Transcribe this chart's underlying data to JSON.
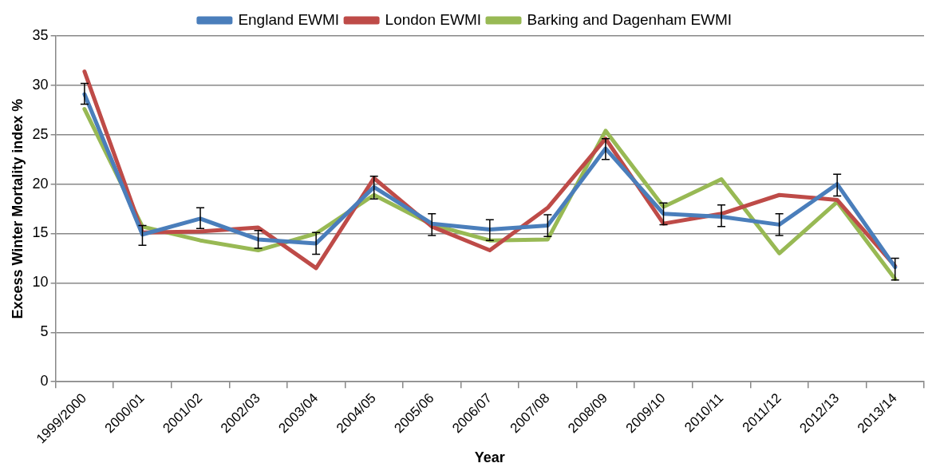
{
  "chart_data": {
    "type": "line",
    "xlabel": "Year",
    "ylabel": "Excess Winter Mortality index %",
    "categories": [
      "1999/2000",
      "2000/01",
      "2001/02",
      "2002/03",
      "2003/04",
      "2004/05",
      "2005/06",
      "2006/07",
      "2007/08",
      "2008/09",
      "2009/10",
      "2010/11",
      "2011/12",
      "2012/13",
      "2013/14"
    ],
    "series": [
      {
        "name": "England EWMI",
        "color": "#4a7ebb",
        "values": [
          29.1,
          14.9,
          16.5,
          14.4,
          14.0,
          19.7,
          16.0,
          15.4,
          15.8,
          23.6,
          17.0,
          16.7,
          15.9,
          20.0,
          11.6
        ],
        "errors": [
          [
            28.1,
            30.2
          ],
          [
            13.8,
            15.8
          ],
          [
            15.5,
            17.6
          ],
          [
            13.5,
            15.3
          ],
          [
            12.9,
            15.1
          ],
          [
            18.5,
            20.8
          ],
          [
            14.8,
            17.0
          ],
          [
            14.3,
            16.4
          ],
          [
            14.7,
            16.9
          ],
          [
            22.5,
            24.6
          ],
          [
            15.9,
            18.1
          ],
          [
            15.7,
            17.9
          ],
          [
            14.8,
            17.0
          ],
          [
            18.8,
            21.0
          ],
          [
            10.3,
            12.5
          ]
        ]
      },
      {
        "name": "London EWMI",
        "color": "#be4b48",
        "values": [
          31.4,
          15.1,
          15.2,
          15.6,
          11.5,
          20.6,
          15.7,
          13.3,
          17.6,
          24.6,
          16.0,
          17.0,
          18.9,
          18.4,
          11.7
        ]
      },
      {
        "name": "Barking and Dagenham EWMI",
        "color": "#98b954",
        "values": [
          27.6,
          15.7,
          14.3,
          13.3,
          15.0,
          18.9,
          15.9,
          14.3,
          14.4,
          25.4,
          17.7,
          20.5,
          13.0,
          18.2,
          10.4
        ]
      }
    ],
    "ylim": [
      0,
      35
    ],
    "yticks": [
      0,
      5,
      10,
      15,
      20,
      25,
      30,
      35
    ],
    "grid": "y",
    "legend": "top",
    "marker": "none",
    "line_style": "solid"
  }
}
